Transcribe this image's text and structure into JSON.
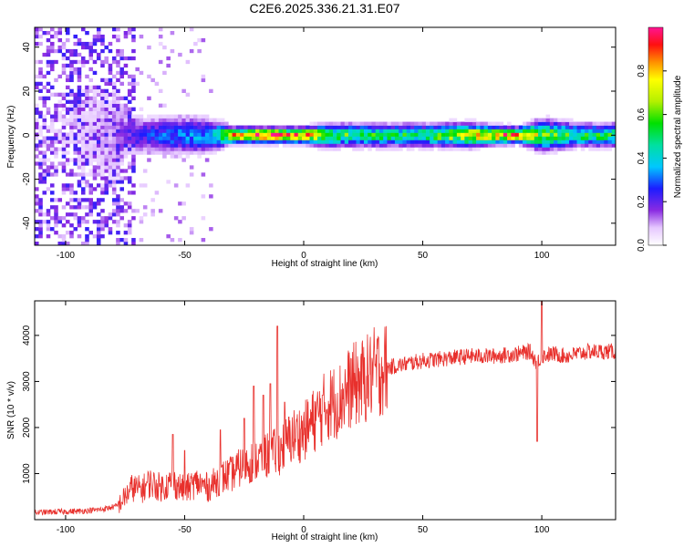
{
  "title": "C2E6.2025.336.21.31.E07",
  "chart_data": [
    {
      "type": "heatmap",
      "xlabel": "Height of straight line (km)",
      "ylabel": "Frequency (Hz)",
      "xlim": [
        -113,
        131
      ],
      "ylim": [
        -50,
        49
      ],
      "xticks": [
        -100,
        -50,
        0,
        50,
        100
      ],
      "yticks": [
        -40,
        -20,
        0,
        20,
        40
      ],
      "ridge": [
        {
          "x": -108,
          "amp": 0.05,
          "width": 22
        },
        {
          "x": -95,
          "amp": 0.06,
          "width": 22
        },
        {
          "x": -80,
          "amp": 0.1,
          "width": 18
        },
        {
          "x": -75,
          "amp": 0.18,
          "width": 6
        },
        {
          "x": -65,
          "amp": 0.25,
          "width": 5
        },
        {
          "x": -55,
          "amp": 0.3,
          "width": 5
        },
        {
          "x": -45,
          "amp": 0.33,
          "width": 5
        },
        {
          "x": -38,
          "amp": 0.35,
          "width": 4
        },
        {
          "x": -30,
          "amp": 0.85,
          "width": 2
        },
        {
          "x": -20,
          "amp": 0.9,
          "width": 2
        },
        {
          "x": -10,
          "amp": 0.85,
          "width": 2
        },
        {
          "x": 0,
          "amp": 0.9,
          "width": 2
        },
        {
          "x": 10,
          "amp": 0.55,
          "width": 3
        },
        {
          "x": 30,
          "amp": 0.5,
          "width": 3
        },
        {
          "x": 50,
          "amp": 0.5,
          "width": 3
        },
        {
          "x": 70,
          "amp": 0.7,
          "width": 3
        },
        {
          "x": 90,
          "amp": 0.85,
          "width": 2
        },
        {
          "x": 100,
          "amp": 0.6,
          "width": 4
        },
        {
          "x": 115,
          "amp": 0.5,
          "width": 3
        },
        {
          "x": 131,
          "amp": 0.5,
          "width": 3
        }
      ],
      "colorbar": {
        "label": "Normalized spectral amplitude",
        "range": [
          0,
          1
        ],
        "ticks": [
          "0.0",
          "0.2",
          "0.4",
          "0.6",
          "0.8"
        ]
      }
    },
    {
      "type": "line",
      "xlabel": "Height of straight line (km)",
      "ylabel": "SNR (10 * v/v)",
      "xlim": [
        -113,
        131
      ],
      "ylim": [
        0,
        4750
      ],
      "xticks": [
        -100,
        -50,
        0,
        50,
        100
      ],
      "yticks": [
        1000,
        2000,
        3000,
        4000
      ],
      "color": "#e8302c",
      "series": [
        {
          "x": [
            -113,
            -105,
            -95,
            -85,
            -78,
            -75,
            -72,
            -68,
            -65,
            -60,
            -55,
            -50,
            -45,
            -40,
            -35,
            -30,
            -25,
            -20,
            -15,
            -10,
            -5,
            0,
            5,
            10,
            15,
            20,
            25,
            30,
            35,
            40,
            50,
            60,
            70,
            80,
            90,
            95,
            98,
            100,
            105,
            110,
            120,
            131
          ],
          "y": [
            150,
            170,
            180,
            220,
            300,
            500,
            700,
            650,
            800,
            700,
            800,
            650,
            800,
            700,
            900,
            1000,
            1200,
            1300,
            1400,
            1500,
            1800,
            1900,
            2200,
            2500,
            2600,
            2900,
            3000,
            3200,
            3300,
            3350,
            3450,
            3500,
            3550,
            3550,
            3600,
            3650,
            3400,
            3550,
            3600,
            3550,
            3650,
            3650
          ],
          "spikes": [
            {
              "x": -55,
              "y": 1850
            },
            {
              "x": -50,
              "y": 1500
            },
            {
              "x": -35,
              "y": 1950
            },
            {
              "x": -25,
              "y": 2200
            },
            {
              "x": -21,
              "y": 2900
            },
            {
              "x": -17,
              "y": 2700
            },
            {
              "x": -14,
              "y": 2950
            },
            {
              "x": -11,
              "y": 4200
            },
            {
              "x": -8,
              "y": 2550
            },
            {
              "x": 8,
              "y": 2700
            },
            {
              "x": 98,
              "y": 1700
            },
            {
              "x": 100,
              "y": 4750
            }
          ]
        }
      ]
    }
  ]
}
